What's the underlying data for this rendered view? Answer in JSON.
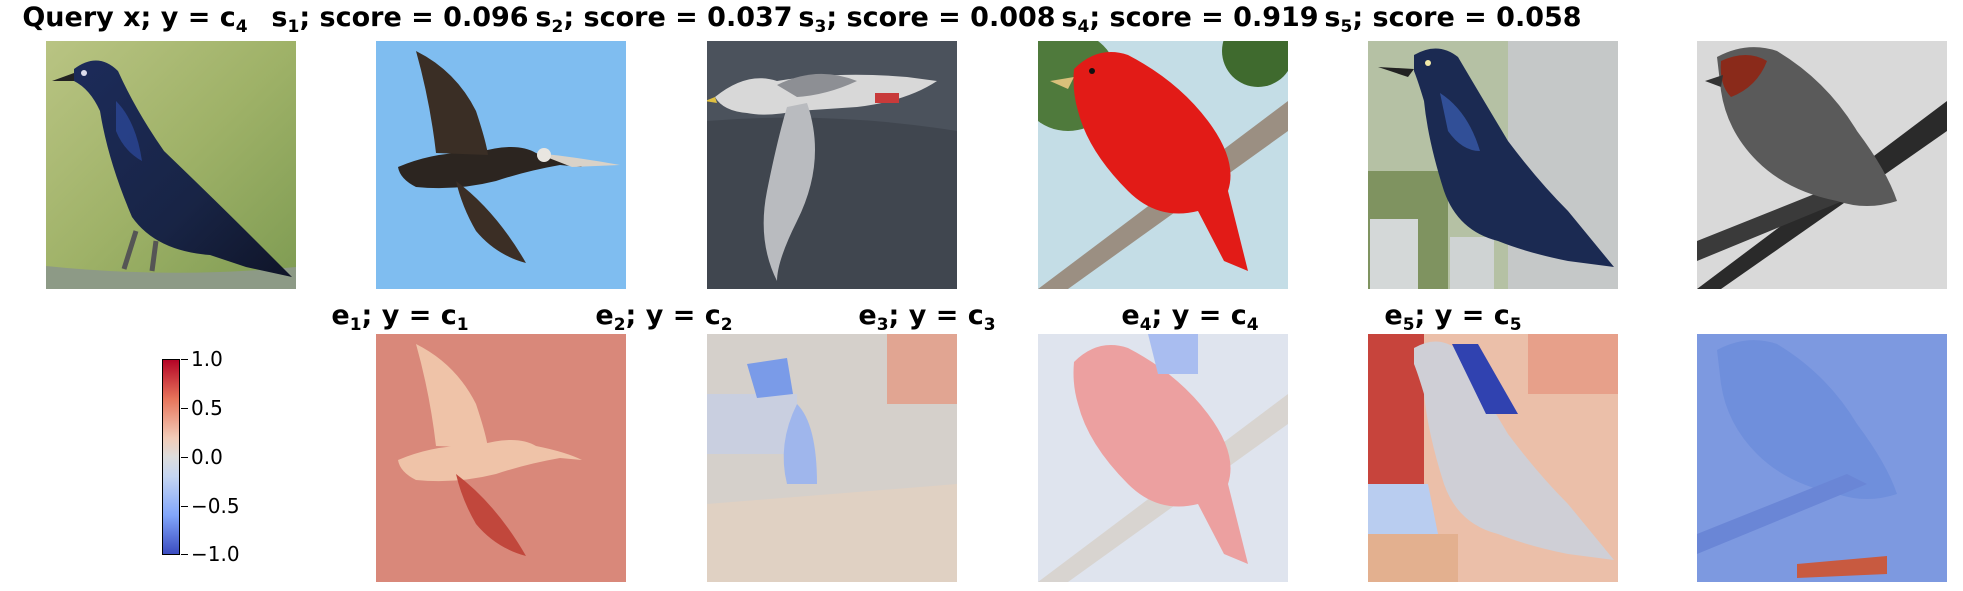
{
  "query": {
    "prefix": "Query x; y = c",
    "class_sub": "4"
  },
  "samples": [
    {
      "sym": "s",
      "idx": "1",
      "score_text": "; score = 0.096"
    },
    {
      "sym": "s",
      "idx": "2",
      "score_text": "; score = 0.037"
    },
    {
      "sym": "s",
      "idx": "3",
      "score_text": "; score = 0.008"
    },
    {
      "sym": "s",
      "idx": "4",
      "score_text": "; score = 0.919"
    },
    {
      "sym": "s",
      "idx": "5",
      "score_text": "; score = 0.058"
    }
  ],
  "explanations": [
    {
      "sym": "e",
      "idx": "1",
      "mid": "; y = c",
      "cls": "1"
    },
    {
      "sym": "e",
      "idx": "2",
      "mid": "; y = c",
      "cls": "2"
    },
    {
      "sym": "e",
      "idx": "3",
      "mid": "; y = c",
      "cls": "3"
    },
    {
      "sym": "e",
      "idx": "4",
      "mid": "; y = c",
      "cls": "4"
    },
    {
      "sym": "e",
      "idx": "5",
      "mid": "; y = c",
      "cls": "5"
    }
  ],
  "colorbar": {
    "ticks": [
      "1.0",
      "0.5",
      "0.0",
      "−0.5",
      "−1.0"
    ],
    "colors": {
      "high": "#b40426",
      "mid": "#dddddd",
      "low": "#3b4cc0"
    }
  }
}
